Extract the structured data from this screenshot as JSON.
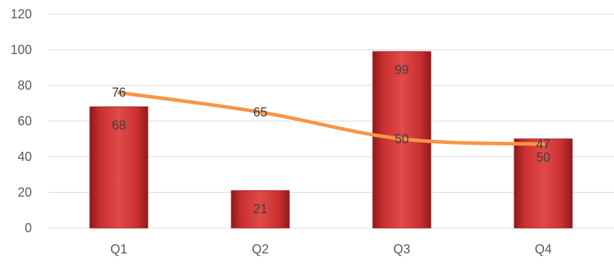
{
  "chart_data": {
    "type": "bar",
    "categories": [
      "Q1",
      "Q2",
      "Q3",
      "Q4"
    ],
    "series": [
      {
        "type": "bar",
        "values": [
          68,
          21,
          99,
          50
        ],
        "color": "#c0272d"
      },
      {
        "type": "line",
        "values": [
          76,
          65,
          50,
          47
        ],
        "color": "#f79646",
        "smooth": true
      }
    ],
    "ylim": [
      0,
      120
    ],
    "yticks": [
      0,
      20,
      40,
      60,
      80,
      100,
      120
    ],
    "grid": true,
    "legend": "none",
    "title": "",
    "xlabel": "",
    "ylabel": ""
  }
}
